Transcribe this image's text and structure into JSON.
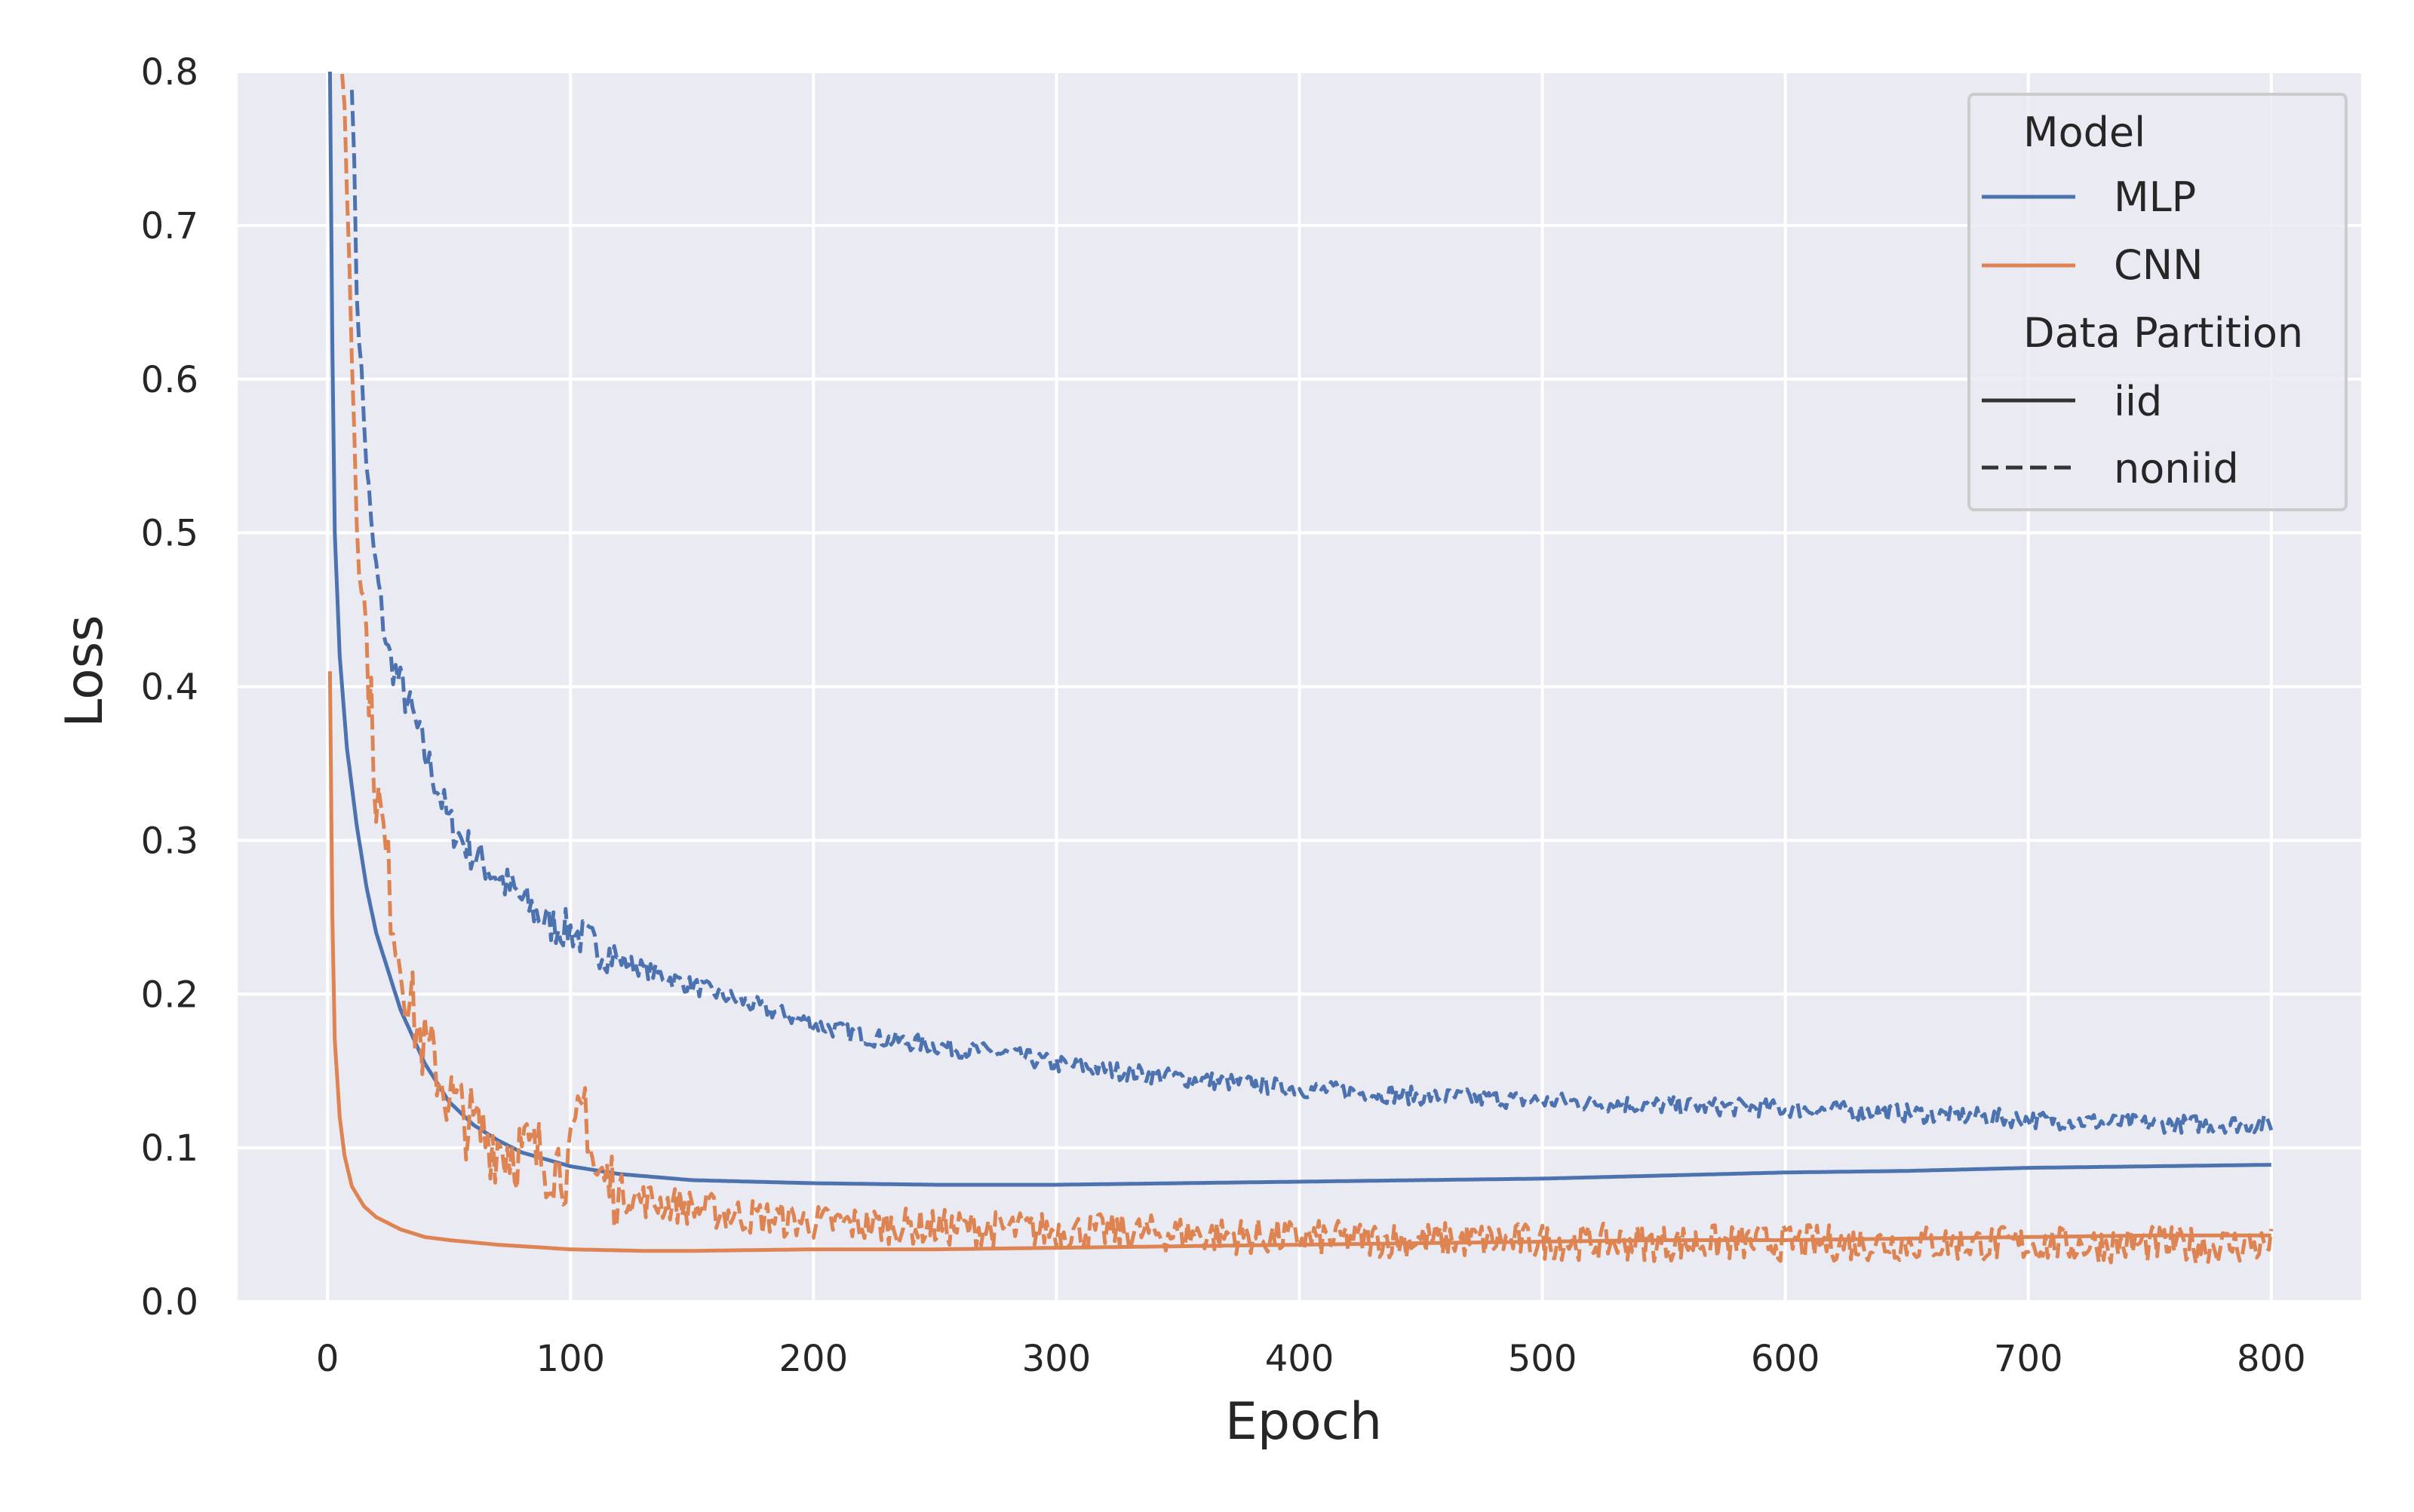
{
  "chart_data": {
    "type": "line",
    "title": "",
    "xlabel": "Epoch",
    "ylabel": "Loss",
    "xlim": [
      -37,
      837
    ],
    "ylim": [
      0.0,
      0.8
    ],
    "xticks": [
      "0",
      "100",
      "200",
      "300",
      "400",
      "500",
      "600",
      "700",
      "800"
    ],
    "yticks": [
      "0.0",
      "0.1",
      "0.2",
      "0.3",
      "0.4",
      "0.5",
      "0.6",
      "0.7",
      "0.8"
    ],
    "grid": true,
    "background": "#eaeaf2",
    "legend": {
      "placement": "top-right",
      "hue_title": "Model",
      "style_title": "Data Partition",
      "entries": [
        {
          "label": "MLP",
          "kind": "hue"
        },
        {
          "label": "CNN",
          "kind": "hue"
        },
        {
          "label": "iid",
          "kind": "style"
        },
        {
          "label": "noniid",
          "kind": "style"
        }
      ]
    },
    "colors": {
      "MLP": "#4c72b0",
      "CNN": "#dd8452",
      "style_key": "#333333"
    },
    "series": [
      {
        "name": "MLP",
        "model": "MLP",
        "partition": "iid",
        "dash": false,
        "noise": 0,
        "x": [
          1,
          2,
          3,
          5,
          8,
          12,
          16,
          20,
          25,
          30,
          40,
          50,
          60,
          70,
          80,
          100,
          120,
          150,
          200,
          250,
          300,
          350,
          400,
          450,
          500,
          550,
          600,
          650,
          700,
          750,
          800
        ],
        "y": [
          0.8,
          0.62,
          0.5,
          0.42,
          0.36,
          0.31,
          0.27,
          0.24,
          0.215,
          0.19,
          0.155,
          0.13,
          0.115,
          0.105,
          0.097,
          0.088,
          0.083,
          0.079,
          0.077,
          0.076,
          0.076,
          0.077,
          0.078,
          0.079,
          0.08,
          0.082,
          0.084,
          0.085,
          0.087,
          0.088,
          0.089
        ]
      },
      {
        "name": "MLP",
        "model": "MLP",
        "partition": "noniid",
        "dash": true,
        "noise": 0.006,
        "x": [
          10,
          12,
          15,
          18,
          22,
          25,
          30,
          35,
          40,
          45,
          50,
          60,
          70,
          80,
          90,
          100,
          110,
          120,
          140,
          160,
          180,
          200,
          220,
          250,
          280,
          300,
          350,
          400,
          450,
          500,
          550,
          600,
          650,
          700,
          750,
          800
        ],
        "y": [
          0.8,
          0.66,
          0.57,
          0.5,
          0.45,
          0.42,
          0.4,
          0.38,
          0.355,
          0.335,
          0.31,
          0.29,
          0.275,
          0.26,
          0.245,
          0.24,
          0.23,
          0.222,
          0.21,
          0.2,
          0.19,
          0.18,
          0.172,
          0.166,
          0.16,
          0.154,
          0.145,
          0.138,
          0.133,
          0.13,
          0.127,
          0.125,
          0.122,
          0.118,
          0.115,
          0.115
        ]
      },
      {
        "name": "CNN",
        "model": "CNN",
        "partition": "iid",
        "dash": false,
        "noise": 0,
        "x": [
          1,
          2,
          3,
          5,
          7,
          10,
          15,
          20,
          30,
          40,
          50,
          70,
          100,
          130,
          150,
          200,
          250,
          300,
          350,
          400,
          450,
          500,
          550,
          600,
          650,
          700,
          750,
          800
        ],
        "y": [
          0.41,
          0.25,
          0.17,
          0.12,
          0.095,
          0.075,
          0.062,
          0.055,
          0.047,
          0.042,
          0.04,
          0.037,
          0.034,
          0.033,
          0.033,
          0.034,
          0.034,
          0.035,
          0.036,
          0.037,
          0.038,
          0.039,
          0.04,
          0.04,
          0.041,
          0.042,
          0.043,
          0.043
        ]
      },
      {
        "name": "CNN",
        "model": "CNN",
        "partition": "noniid",
        "dash": true,
        "noise": 0.012,
        "x": [
          6,
          8,
          10,
          12,
          15,
          18,
          20,
          23,
          26,
          28,
          30,
          33,
          36,
          40,
          45,
          50,
          55,
          60,
          70,
          80,
          90,
          100,
          106,
          110,
          120,
          130,
          150,
          170,
          200,
          250,
          300,
          350,
          400,
          450,
          500,
          550,
          600,
          650,
          700,
          750,
          800
        ],
        "y": [
          0.8,
          0.73,
          0.62,
          0.52,
          0.45,
          0.38,
          0.33,
          0.3,
          0.26,
          0.24,
          0.22,
          0.2,
          0.18,
          0.16,
          0.15,
          0.13,
          0.12,
          0.11,
          0.1,
          0.095,
          0.09,
          0.085,
          0.13,
          0.08,
          0.07,
          0.065,
          0.06,
          0.055,
          0.05,
          0.047,
          0.045,
          0.043,
          0.04,
          0.039,
          0.038,
          0.037,
          0.037,
          0.037,
          0.036,
          0.036,
          0.035
        ]
      }
    ]
  }
}
